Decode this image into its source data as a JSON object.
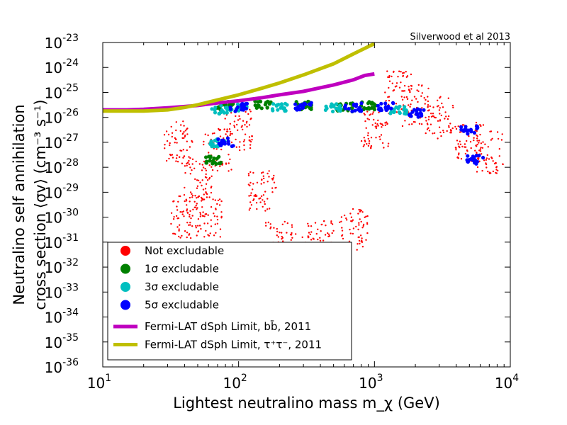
{
  "chart_data": {
    "type": "scatter",
    "xscale": "log",
    "yscale": "log",
    "xlim": [
      10,
      10000
    ],
    "ylim": [
      1e-36,
      1e-23
    ],
    "xlabel": "Lightest neutralino mass m_χ (GeV)",
    "ylabel": "Neutralino self annihilation cross section ⟨σv⟩ (cm⁻³ s⁻¹)",
    "ylabel_lines": [
      "Neutralino self annihilation",
      "cross section ⟨σv⟩ (cm⁻³ s⁻¹)"
    ],
    "annotation": "Silverwood et al 2013",
    "x_ticks": [
      "10",
      "1",
      "10",
      "2",
      "10",
      "3",
      "10",
      "4"
    ],
    "x_tick_labels": [
      {
        "base": "10",
        "exp": "1"
      },
      {
        "base": "10",
        "exp": "2"
      },
      {
        "base": "10",
        "exp": "3"
      },
      {
        "base": "10",
        "exp": "4"
      }
    ],
    "y_tick_labels": [
      {
        "base": "10",
        "exp": "-36"
      },
      {
        "base": "10",
        "exp": "-35"
      },
      {
        "base": "10",
        "exp": "-34"
      },
      {
        "base": "10",
        "exp": "-33"
      },
      {
        "base": "10",
        "exp": "-32"
      },
      {
        "base": "10",
        "exp": "-31"
      },
      {
        "base": "10",
        "exp": "-30"
      },
      {
        "base": "10",
        "exp": "-29"
      },
      {
        "base": "10",
        "exp": "-28"
      },
      {
        "base": "10",
        "exp": "-27"
      },
      {
        "base": "10",
        "exp": "-26"
      },
      {
        "base": "10",
        "exp": "-25"
      },
      {
        "base": "10",
        "exp": "-24"
      },
      {
        "base": "10",
        "exp": "-23"
      }
    ],
    "legend_placement": "lower-left",
    "legend": [
      {
        "label": "Not excludable",
        "marker": "circle",
        "color": "#ff0000"
      },
      {
        "label": "1σ excludable",
        "marker": "circle",
        "color": "#008000"
      },
      {
        "label": "3σ excludable",
        "marker": "circle",
        "color": "#00bfbf"
      },
      {
        "label": "5σ excludable",
        "marker": "circle",
        "color": "#0000ff"
      },
      {
        "label": "Fermi-LAT dSph Limit, bb̄, 2011",
        "marker": "line",
        "color": "#bf00bf"
      },
      {
        "label": "Fermi-LAT dSph Limit, τ⁺τ⁻, 2011",
        "marker": "line",
        "color": "#bfbf00"
      }
    ],
    "lines": [
      {
        "name": "Fermi-LAT dSph Limit, bb̄, 2011",
        "color": "#bf00bf",
        "points": [
          [
            10,
            2e-26
          ],
          [
            15,
            2e-26
          ],
          [
            20,
            2.1e-26
          ],
          [
            30,
            2.4e-26
          ],
          [
            50,
            3e-26
          ],
          [
            70,
            3.8e-26
          ],
          [
            100,
            4.6e-26
          ],
          [
            150,
            6.2e-26
          ],
          [
            200,
            8e-26
          ],
          [
            300,
            1.1e-25
          ],
          [
            500,
            2e-25
          ],
          [
            700,
            3.2e-25
          ],
          [
            850,
            4.8e-25
          ],
          [
            1000,
            5.5e-25
          ]
        ]
      },
      {
        "name": "Fermi-LAT dSph Limit, τ⁺τ⁻, 2011",
        "color": "#bfbf00",
        "points": [
          [
            10,
            1.8e-26
          ],
          [
            15,
            1.8e-26
          ],
          [
            20,
            1.8e-26
          ],
          [
            25,
            1.9e-26
          ],
          [
            30,
            2e-26
          ],
          [
            40,
            2.5e-26
          ],
          [
            50,
            3.2e-26
          ],
          [
            70,
            5e-26
          ],
          [
            100,
            8e-26
          ],
          [
            150,
            1.5e-25
          ],
          [
            200,
            2.4e-25
          ],
          [
            300,
            5e-25
          ],
          [
            500,
            1.4e-24
          ],
          [
            700,
            3.5e-24
          ],
          [
            1000,
            9e-24
          ]
        ]
      }
    ],
    "scatter_regions": [
      {
        "name": "Not excludable",
        "color": "#ff0000",
        "points": [
          [
            36,
            1e-27
          ],
          [
            40,
            1e-30
          ],
          [
            50,
            3e-29
          ],
          [
            60,
            1e-30
          ],
          [
            70,
            5e-28
          ],
          [
            100,
            3e-27
          ],
          [
            150,
            1e-29
          ],
          [
            200,
            1e-31
          ],
          [
            300,
            3e-32
          ],
          [
            400,
            1e-31
          ],
          [
            500,
            1e-32
          ],
          [
            700,
            3e-31
          ],
          [
            1000,
            3e-27
          ],
          [
            1500,
            1e-25
          ],
          [
            2000,
            3e-26
          ],
          [
            3000,
            1e-26
          ],
          [
            5000,
            1e-27
          ],
          [
            7000,
            4e-28
          ]
        ]
      },
      {
        "name": "1σ excludable",
        "color": "#008000",
        "points": [
          [
            65,
            2e-28
          ],
          [
            80,
            3e-26
          ],
          [
            150,
            3e-26
          ],
          [
            300,
            3e-26
          ],
          [
            600,
            2.5e-26
          ],
          [
            900,
            3e-26
          ]
        ]
      },
      {
        "name": "3σ excludable",
        "color": "#00bfbf",
        "points": [
          [
            70,
            1e-27
          ],
          [
            72,
            2e-26
          ],
          [
            100,
            2.5e-26
          ],
          [
            200,
            2.5e-26
          ],
          [
            500,
            2.5e-26
          ],
          [
            1500,
            2e-26
          ]
        ]
      },
      {
        "name": "5σ excludable",
        "color": "#0000ff",
        "points": [
          [
            80,
            1e-27
          ],
          [
            100,
            2.5e-26
          ],
          [
            300,
            2.8e-26
          ],
          [
            700,
            2.5e-26
          ],
          [
            1200,
            2.8e-26
          ],
          [
            2000,
            1.5e-26
          ],
          [
            5000,
            3e-27
          ],
          [
            5500,
            2e-28
          ]
        ]
      }
    ]
  }
}
